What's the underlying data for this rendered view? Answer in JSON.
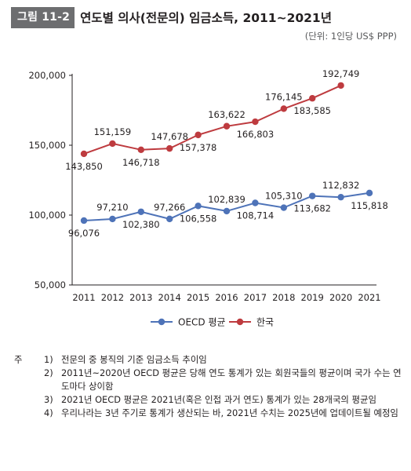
{
  "header": {
    "badge": "그림 11-2",
    "title": "연도별 의사(전문의) 임금소득, 2011~2021년",
    "unit": "(단위: 1인당 US$ PPP)"
  },
  "colors": {
    "oecd": "#4e73b8",
    "korea": "#be3b3f",
    "badge_bg": "#6d6e70"
  },
  "chart_data": {
    "type": "line",
    "x": [
      "2011",
      "2012",
      "2013",
      "2014",
      "2015",
      "2016",
      "2017",
      "2018",
      "2019",
      "2020",
      "2021"
    ],
    "ylim": [
      50000,
      200000
    ],
    "yticks": [
      50000,
      100000,
      150000,
      200000
    ],
    "ytick_labels": [
      "50,000",
      "100,000",
      "150,000",
      "200,000"
    ],
    "grid": false,
    "legend_position": "bottom",
    "series": [
      {
        "name": "OECD 평균",
        "values": [
          96076,
          97210,
          102380,
          97266,
          106558,
          102839,
          108714,
          105310,
          113682,
          112832,
          115818
        ],
        "labels": [
          "96,076",
          "97,210",
          "102,380",
          "97,266",
          "106,558",
          "102,839",
          "108,714",
          "105,310",
          "113,682",
          "112,832",
          "115,818"
        ]
      },
      {
        "name": "한국",
        "values": [
          143850,
          151159,
          146718,
          147678,
          157378,
          163622,
          166803,
          176145,
          183585,
          192749,
          null
        ],
        "labels": [
          "143,850",
          "151,159",
          "146,718",
          "147,678",
          "157,378",
          "163,622",
          "166,803",
          "176,145",
          "183,585",
          "192,749",
          ""
        ]
      }
    ]
  },
  "notes": [
    {
      "prefix": "주",
      "num": "1)",
      "text": "전문의 중 봉직의 기준 임금소득 추이임"
    },
    {
      "prefix": "",
      "num": "2)",
      "text": "2011년~2020년 OECD 평균은 당해 연도 통계가 있는 회원국들의 평균이며 국가 수는 연도마다 상이함"
    },
    {
      "prefix": "",
      "num": "3)",
      "text": "2021년 OECD 평균은 2021년(혹은 인접 과거 연도) 통계가 있는 28개국의 평균임"
    },
    {
      "prefix": "",
      "num": "4)",
      "text": "우리나라는 3년 주기로 통계가 생산되는 바, 2021년 수치는 2025년에 업데이트될 예정임"
    }
  ]
}
